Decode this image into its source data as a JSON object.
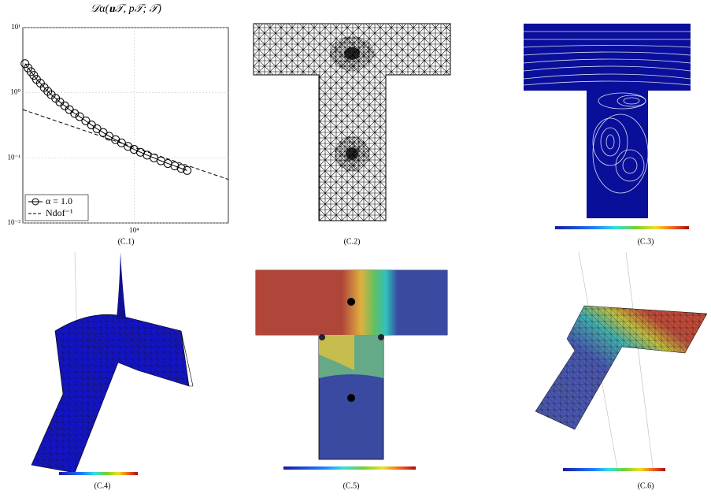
{
  "chart_data": {
    "type": "line",
    "title": "𝒟α(𝐮𝒯, p𝒯; 𝒯)",
    "xlog": true,
    "ylog": true,
    "grid": true,
    "legend": "lower left",
    "xlim": [
      2630,
      31000
    ],
    "ylim": [
      0.01,
      10
    ],
    "xticks": [
      {
        "value": 10000,
        "label": "10⁴"
      }
    ],
    "yticks": [
      {
        "value": 0.01,
        "label": "10⁻²"
      },
      {
        "value": 0.1,
        "label": "10⁻¹"
      },
      {
        "value": 1,
        "label": "10⁰"
      },
      {
        "value": 10,
        "label": "10¹"
      }
    ],
    "series": [
      {
        "name": "α = 1.0",
        "color": "#000000",
        "marker": "circle",
        "dash": "solid",
        "x": [
          2700,
          2800,
          2900,
          3000,
          3100,
          3250,
          3400,
          3550,
          3700,
          3900,
          4100,
          4350,
          4600,
          4900,
          5200,
          5600,
          6000,
          6400,
          6900,
          7400,
          8000,
          8600,
          9300,
          10000,
          10800,
          11700,
          12700,
          13800,
          15000,
          16300,
          17600,
          18900
        ],
        "values": [
          2.8,
          2.4,
          2.1,
          1.85,
          1.6,
          1.4,
          1.2,
          1.05,
          0.93,
          0.82,
          0.72,
          0.63,
          0.55,
          0.48,
          0.43,
          0.37,
          0.32,
          0.28,
          0.245,
          0.215,
          0.19,
          0.17,
          0.15,
          0.135,
          0.122,
          0.11,
          0.1,
          0.09,
          0.082,
          0.075,
          0.069,
          0.064
        ]
      },
      {
        "name": "Ndof⁻¹",
        "color": "#000000",
        "marker": "none",
        "dash": "dashed",
        "x": [
          2630,
          31000
        ],
        "values": [
          0.55,
          0.0467
        ]
      }
    ]
  },
  "captions": [
    "(C.1)",
    "(C.2)",
    "(C.3)",
    "(C.4)",
    "(C.5)",
    "(C.6)"
  ]
}
